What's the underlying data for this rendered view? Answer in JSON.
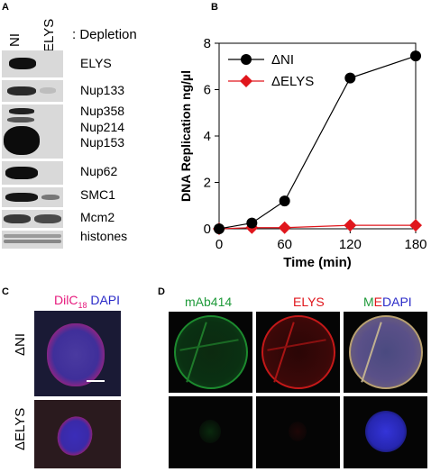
{
  "panel_a": {
    "letter": "A",
    "lanes": [
      "NI",
      "ELYS"
    ],
    "depletion_label": ": Depletion",
    "blot_labels": [
      "ELYS",
      "Nup133",
      "Nup358",
      "Nup214",
      "Nup153",
      "Nup62",
      "SMC1",
      "Mcm2",
      "histones"
    ]
  },
  "panel_b": {
    "letter": "B"
  },
  "panel_c": {
    "letter": "C",
    "stain_main": "DilC",
    "stain_sub": "18",
    "stain_dapi": "DAPI",
    "row_labels": [
      "ΔNI",
      "ΔELYS"
    ]
  },
  "panel_d": {
    "letter": "D",
    "col_labels": [
      "mAb414",
      "ELYS"
    ],
    "merge_m": "M",
    "merge_e": "E",
    "merge_dapi": "DAPI"
  },
  "colors": {
    "ni_series": "#000000",
    "elys_series": "#e0161c",
    "dilc": "#e6197c",
    "dapi": "#2a2ac8",
    "mab414": "#1f9a3a",
    "elys_stain": "#e0161c"
  },
  "chart_data": {
    "type": "line",
    "title": "",
    "xlabel": "Time (min)",
    "ylabel": "DNA Replication ng/µl",
    "xlim": [
      0,
      180
    ],
    "ylim": [
      0,
      8
    ],
    "x_ticks": [
      0,
      60,
      120,
      180
    ],
    "y_ticks": [
      0,
      2,
      4,
      6,
      8
    ],
    "legend_position": "top-left",
    "series": [
      {
        "name": "ΔNI",
        "marker": "circle",
        "color": "#000000",
        "x": [
          0,
          30,
          60,
          120,
          180
        ],
        "y": [
          0.0,
          0.25,
          1.2,
          6.5,
          7.45
        ]
      },
      {
        "name": "ΔELYS",
        "marker": "diamond",
        "color": "#e0161c",
        "x": [
          0,
          30,
          60,
          120,
          180
        ],
        "y": [
          0.0,
          0.05,
          0.05,
          0.15,
          0.15
        ]
      }
    ]
  }
}
